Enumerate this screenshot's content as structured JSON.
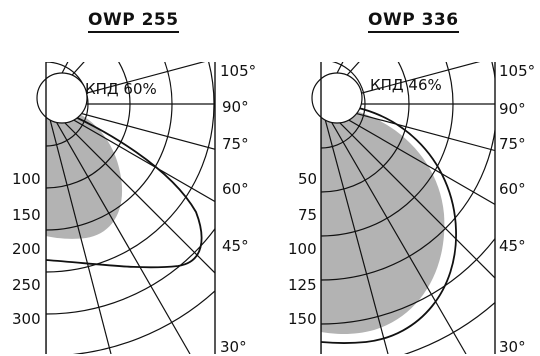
{
  "diagrams": [
    {
      "title": "OWP 255",
      "efficiency": "КПД 60%",
      "angle_labels": [
        "105°",
        "90°",
        "75°",
        "60°",
        "45°",
        "30°"
      ],
      "radial_labels": [
        "100",
        "150",
        "200",
        "250",
        "300"
      ]
    },
    {
      "title": "OWP 336",
      "efficiency": "КПД 46%",
      "angle_labels": [
        "105°",
        "90°",
        "75°",
        "60°",
        "45°",
        "30°"
      ],
      "radial_labels": [
        "50",
        "75",
        "100",
        "125",
        "150"
      ]
    }
  ],
  "colors": {
    "shaded": "#b3b3b3",
    "line": "#111111"
  }
}
